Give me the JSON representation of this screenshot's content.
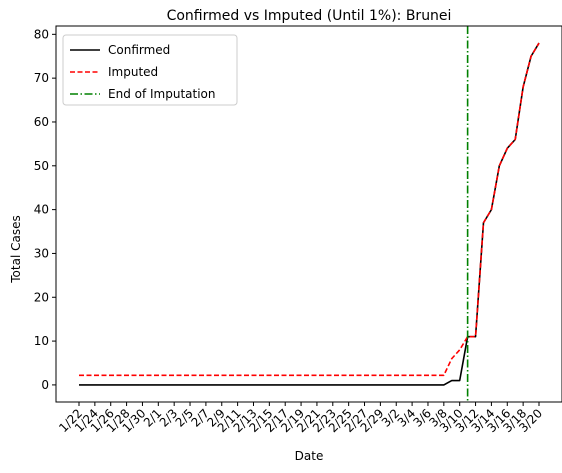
{
  "chart_data": {
    "type": "line",
    "title": "Confirmed vs Imputed (Until 1%): Brunei",
    "xlabel": "Date",
    "ylabel": "Total Cases",
    "ylim": [
      -3.9,
      81.9
    ],
    "yticks": [
      0,
      10,
      20,
      30,
      40,
      50,
      60,
      70,
      80
    ],
    "xtick_labels": [
      "1/22",
      "1/24",
      "1/26",
      "1/28",
      "1/30",
      "2/1",
      "2/3",
      "2/5",
      "2/7",
      "2/9",
      "2/11",
      "2/13",
      "2/15",
      "2/17",
      "2/19",
      "2/21",
      "2/23",
      "2/25",
      "2/27",
      "2/29",
      "3/2",
      "3/4",
      "3/6",
      "3/8",
      "3/10",
      "3/12",
      "3/14",
      "3/16",
      "3/18",
      "3/20"
    ],
    "x": [
      "1/22",
      "1/23",
      "1/24",
      "1/25",
      "1/26",
      "1/27",
      "1/28",
      "1/29",
      "1/30",
      "1/31",
      "2/1",
      "2/2",
      "2/3",
      "2/4",
      "2/5",
      "2/6",
      "2/7",
      "2/8",
      "2/9",
      "2/10",
      "2/11",
      "2/12",
      "2/13",
      "2/14",
      "2/15",
      "2/16",
      "2/17",
      "2/18",
      "2/19",
      "2/20",
      "2/21",
      "2/22",
      "2/23",
      "2/24",
      "2/25",
      "2/26",
      "2/27",
      "2/28",
      "2/29",
      "3/1",
      "3/2",
      "3/3",
      "3/4",
      "3/5",
      "3/6",
      "3/7",
      "3/8",
      "3/9",
      "3/10",
      "3/11",
      "3/12",
      "3/13",
      "3/14",
      "3/15",
      "3/16",
      "3/17",
      "3/18",
      "3/19",
      "3/20"
    ],
    "series": [
      {
        "name": "Confirmed",
        "color": "#000000",
        "style": "solid",
        "values": [
          0,
          0,
          0,
          0,
          0,
          0,
          0,
          0,
          0,
          0,
          0,
          0,
          0,
          0,
          0,
          0,
          0,
          0,
          0,
          0,
          0,
          0,
          0,
          0,
          0,
          0,
          0,
          0,
          0,
          0,
          0,
          0,
          0,
          0,
          0,
          0,
          0,
          0,
          0,
          0,
          0,
          0,
          0,
          0,
          0,
          0,
          0,
          1,
          1,
          11,
          11,
          37,
          40,
          50,
          54,
          56,
          68,
          75,
          78
        ]
      },
      {
        "name": "Imputed",
        "color": "#ff0000",
        "style": "dashed",
        "values": [
          2.2,
          2.2,
          2.2,
          2.2,
          2.2,
          2.2,
          2.2,
          2.2,
          2.2,
          2.2,
          2.2,
          2.2,
          2.2,
          2.2,
          2.2,
          2.2,
          2.2,
          2.2,
          2.2,
          2.2,
          2.2,
          2.2,
          2.2,
          2.2,
          2.2,
          2.2,
          2.2,
          2.2,
          2.2,
          2.2,
          2.2,
          2.2,
          2.2,
          2.2,
          2.2,
          2.2,
          2.2,
          2.2,
          2.2,
          2.2,
          2.2,
          2.2,
          2.2,
          2.2,
          2.2,
          2.2,
          2.2,
          6,
          8,
          11,
          11,
          37,
          40,
          50,
          54,
          56,
          68,
          75,
          78
        ]
      }
    ],
    "vline": {
      "name": "End of Imputation",
      "x": "3/11",
      "color": "#008000",
      "style": "dashdot"
    },
    "legend": "top-left",
    "grid": false
  }
}
